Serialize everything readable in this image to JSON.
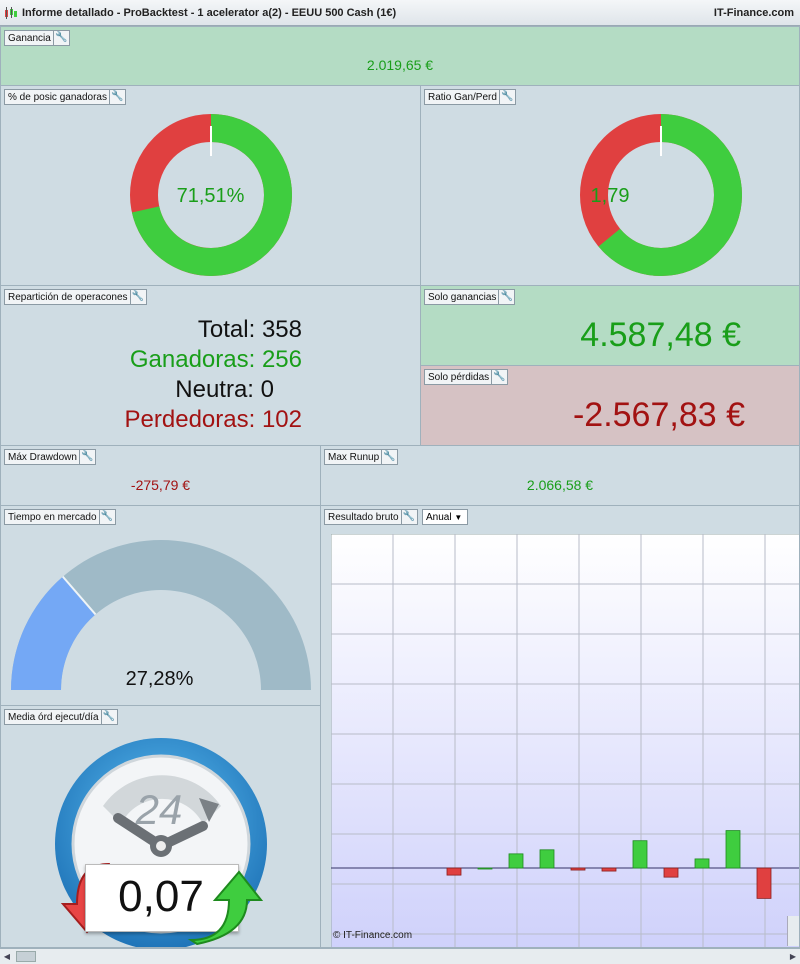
{
  "window": {
    "title": "Informe detallado - ProBacktest - 1  acelerator a(2) - EEUU 500 Cash (1€)",
    "brand": "IT-Finance.com"
  },
  "ganancia": {
    "label": "Ganancia",
    "value": "2.019,65 €"
  },
  "pct_ganadoras": {
    "label": "% de posic ganadoras",
    "value": "71,51%",
    "fraction": 0.7151
  },
  "ratio": {
    "label": "Ratio Gan/Perd",
    "value": "1,79",
    "fraction": 0.64
  },
  "reparticion": {
    "label": "Repartición de operacones",
    "total_label": "Total:",
    "total": "358",
    "gan_label": "Ganadoras:",
    "gan": "256",
    "neutra_label": "Neutra:",
    "neutra": "0",
    "perd_label": "Perdedoras:",
    "perd": "102"
  },
  "solo_ganancias": {
    "label": "Solo ganancias",
    "value": "4.587,48 €"
  },
  "solo_perdidas": {
    "label": "Solo pérdidas",
    "value": "-2.567,83 €"
  },
  "max_drawdown": {
    "label": "Máx Drawdown",
    "value": "-275,79 €"
  },
  "max_runup": {
    "label": "Max Runup",
    "value": "2.066,58 €"
  },
  "tiempo": {
    "label": "Tiempo en mercado",
    "value": "27,28%",
    "fraction": 0.2728
  },
  "media": {
    "label": "Media órd ejecut/día",
    "value": "0,07",
    "clock": "24"
  },
  "resultado": {
    "label": "Resultado bruto",
    "select": "Anual",
    "copyright": "© IT-Finance.com"
  },
  "colors": {
    "gain": "#3fcd3f",
    "loss": "#e04040",
    "gauge_fill": "#74a8f5",
    "gauge_bg": "#9fbac7"
  },
  "chart_data": {
    "type": "bar",
    "values": [
      -7,
      0,
      14,
      18,
      -2,
      -3,
      27,
      -9,
      9,
      37,
      -30
    ],
    "ylim": [
      -80,
      330
    ],
    "grid": true
  }
}
